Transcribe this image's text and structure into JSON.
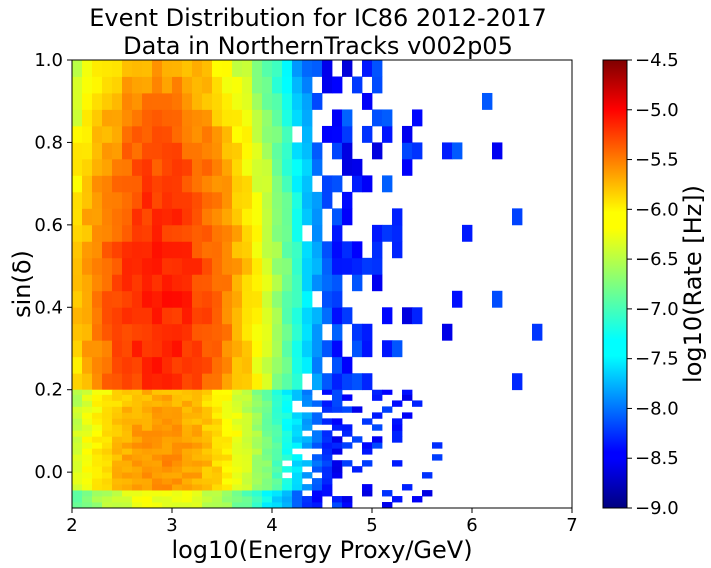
{
  "chart_data": {
    "type": "heatmap",
    "title_line1": "Event Distribution for IC86 2012-2017",
    "title_line2": "Data in NorthernTracks v002p05",
    "xlabel": "log10(Energy Proxy/GeV)",
    "ylabel": "sin(δ)",
    "xlim": [
      2,
      7
    ],
    "ylim": [
      -0.087,
      1.0
    ],
    "xticks": [
      "2",
      "3",
      "4",
      "5",
      "6",
      "7"
    ],
    "yticks": [
      "0.0",
      "0.2",
      "0.4",
      "0.6",
      "0.8",
      "1.0"
    ],
    "colorbar": {
      "label": "log10(Rate [Hz])",
      "range": [
        -9.0,
        -4.5
      ],
      "colormap": "jet",
      "ticks": [
        "-9.0",
        "-8.5",
        "-8.0",
        "-7.5",
        "-7.0",
        "-6.5",
        "-6.0",
        "-5.5",
        "-5.0",
        "-4.5"
      ]
    },
    "description_of_structure": {
      "x_bin_width": 0.1,
      "peak_log_energy": 2.9,
      "peak_rate_log10": -5.2,
      "horizon_band_sin_dec": 0.2,
      "max_populated_log_energy": 6.7
    }
  }
}
